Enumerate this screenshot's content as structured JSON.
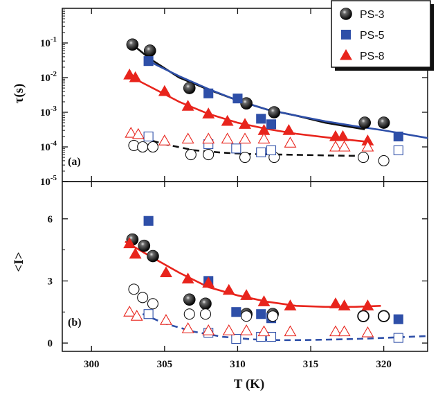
{
  "chart_data": [
    {
      "panel_label": "(a)",
      "type": "scatter",
      "ylabel": "τ(s)",
      "yscale": "log",
      "ylim": [
        1e-05,
        1
      ],
      "xlim": [
        298,
        323
      ],
      "yticks": [
        1e-05,
        0.0001,
        0.001,
        0.01,
        0.1
      ],
      "ytick_labels": [
        {
          "base": "10",
          "exp": "-5"
        },
        {
          "base": "10",
          "exp": "-4"
        },
        {
          "base": "10",
          "exp": "-3"
        },
        {
          "base": "10",
          "exp": "-2"
        },
        {
          "base": "10",
          "exp": "-1"
        }
      ],
      "series": [
        {
          "name": "PS-3",
          "marker": "sphere",
          "filled": true,
          "color": "#111111",
          "x": [
            302.8,
            304.0,
            306.7,
            310.6,
            312.5,
            318.7,
            320.0
          ],
          "y": [
            0.09,
            0.06,
            0.005,
            0.0018,
            0.001,
            0.0005,
            0.0005
          ]
        },
        {
          "name": "PS-5",
          "marker": "square",
          "filled": true,
          "color": "#2e4fa8",
          "x": [
            303.9,
            308.0,
            310.0,
            311.6,
            312.3,
            321.0
          ],
          "y": [
            0.03,
            0.0035,
            0.0025,
            0.00065,
            0.00045,
            0.0002
          ]
        },
        {
          "name": "PS-8",
          "marker": "triangle",
          "filled": true,
          "color": "#e8241c",
          "x": [
            302.6,
            303.0,
            305.0,
            306.6,
            308.0,
            309.3,
            310.5,
            311.8,
            313.5,
            316.7,
            317.2,
            318.9
          ],
          "y": [
            0.012,
            0.01,
            0.004,
            0.0015,
            0.0009,
            0.00055,
            0.00045,
            0.0003,
            0.0003,
            0.0002,
            0.0002,
            0.00015
          ]
        },
        {
          "name": "",
          "marker": "circle",
          "filled": false,
          "color": "#111111",
          "x": [
            302.9,
            303.5,
            304.2,
            306.8,
            308.0,
            310.5,
            312.5,
            318.6,
            320.0
          ],
          "y": [
            0.00011,
            0.0001,
            0.0001,
            6e-05,
            6e-05,
            5e-05,
            5e-05,
            5e-05,
            4e-05
          ]
        },
        {
          "name": "",
          "marker": "square",
          "filled": false,
          "color": "#2e4fa8",
          "x": [
            303.9,
            308.0,
            309.9,
            311.6,
            312.3,
            321.0
          ],
          "y": [
            0.0002,
            0.00012,
            9e-05,
            7e-05,
            8e-05,
            8e-05
          ]
        },
        {
          "name": "",
          "marker": "triangle",
          "filled": false,
          "color": "#e8241c",
          "x": [
            302.7,
            303.2,
            305.0,
            306.6,
            308.0,
            309.3,
            310.5,
            311.8,
            313.6,
            316.7,
            317.3,
            318.9
          ],
          "y": [
            0.00025,
            0.00023,
            0.00015,
            0.00017,
            0.00017,
            0.00017,
            0.00017,
            0.00017,
            0.00013,
            0.0001,
            0.0001,
            0.0001
          ]
        }
      ],
      "fits": [
        {
          "color": "#111111",
          "style": "solid",
          "x": [
            302.8,
            304,
            306,
            308,
            310,
            312,
            314,
            316,
            318.7
          ],
          "y": [
            0.09,
            0.035,
            0.01,
            0.0045,
            0.0022,
            0.0012,
            0.0008,
            0.0005,
            0.00032
          ]
        },
        {
          "color": "#2e4fa8",
          "style": "solid",
          "x": [
            303.9,
            306,
            308,
            310,
            312,
            314,
            316,
            318,
            320,
            323
          ],
          "y": [
            0.03,
            0.011,
            0.0047,
            0.0022,
            0.0012,
            0.0008,
            0.00055,
            0.0004,
            0.0003,
            0.00018
          ]
        },
        {
          "color": "#e8241c",
          "style": "solid",
          "x": [
            302.6,
            304,
            306,
            308,
            310,
            312,
            314,
            316,
            318.9
          ],
          "y": [
            0.011,
            0.0055,
            0.002,
            0.0009,
            0.0005,
            0.00033,
            0.00024,
            0.00019,
            0.00014
          ]
        },
        {
          "color": "#111111",
          "style": "dashed",
          "x": [
            303.5,
            305,
            307,
            309,
            311,
            313,
            315,
            317,
            318.6
          ],
          "y": [
            0.00018,
            0.00012,
            8e-05,
            6.8e-05,
            6.2e-05,
            6e-05,
            5.8e-05,
            5.6e-05,
            5.5e-05
          ]
        }
      ]
    },
    {
      "panel_label": "(b)",
      "type": "scatter",
      "ylabel": "<I>",
      "xlabel": "T (K)",
      "ylim": [
        -0.4,
        7.8
      ],
      "xlim": [
        298,
        323
      ],
      "yticks": [
        0,
        3,
        6
      ],
      "xticks": [
        300,
        305,
        310,
        315,
        320
      ],
      "series": [
        {
          "name": "PS-3",
          "marker": "sphere",
          "filled": true,
          "color": "#111111",
          "x": [
            302.8,
            303.6,
            304.2,
            306.7,
            307.8,
            310.6,
            312.4,
            318.6,
            320.0
          ],
          "y": [
            5.0,
            4.7,
            4.2,
            2.1,
            1.9,
            1.4,
            1.4,
            1.3,
            1.3
          ]
        },
        {
          "name": "PS-5",
          "marker": "square",
          "filled": true,
          "color": "#2e4fa8",
          "x": [
            303.9,
            308.0,
            309.9,
            311.6,
            312.3,
            321.0
          ],
          "y": [
            5.9,
            3.0,
            1.5,
            1.4,
            1.2,
            1.15
          ]
        },
        {
          "name": "PS-8",
          "marker": "triangle",
          "filled": true,
          "color": "#e8241c",
          "x": [
            302.6,
            303.0,
            305.1,
            306.6,
            308.0,
            309.4,
            310.6,
            311.8,
            313.6,
            316.7,
            317.3,
            318.9
          ],
          "y": [
            4.8,
            4.3,
            3.4,
            3.1,
            2.9,
            2.55,
            2.3,
            2.0,
            1.8,
            1.9,
            1.8,
            1.8
          ]
        },
        {
          "name": "",
          "marker": "circle",
          "filled": false,
          "color": "#111111",
          "x": [
            302.9,
            303.5,
            304.2,
            306.7,
            307.8,
            310.6,
            312.4,
            318.6,
            320.0
          ],
          "y": [
            2.6,
            2.2,
            1.9,
            1.4,
            1.4,
            1.3,
            1.3,
            1.3,
            1.3
          ]
        },
        {
          "name": "",
          "marker": "square",
          "filled": false,
          "color": "#2e4fa8",
          "x": [
            303.9,
            308.0,
            309.9,
            311.6,
            312.3,
            321.0
          ],
          "y": [
            1.4,
            0.5,
            0.2,
            0.3,
            0.3,
            0.25
          ]
        },
        {
          "name": "",
          "marker": "triangle",
          "filled": false,
          "color": "#e8241c",
          "x": [
            302.6,
            303.1,
            305.1,
            306.6,
            308.0,
            309.4,
            310.6,
            311.8,
            313.6,
            316.7,
            317.3,
            318.9
          ],
          "y": [
            1.5,
            1.3,
            1.1,
            0.7,
            0.6,
            0.6,
            0.6,
            0.55,
            0.55,
            0.55,
            0.55,
            0.5
          ]
        }
      ],
      "fits": [
        {
          "color": "#e8241c",
          "style": "solid",
          "x": [
            302.3,
            304,
            306,
            308,
            310,
            312,
            314,
            316,
            318,
            319.8
          ],
          "y": [
            4.9,
            4.2,
            3.4,
            2.7,
            2.3,
            2.0,
            1.8,
            1.75,
            1.75,
            1.8
          ]
        },
        {
          "color": "#2e4fa8",
          "style": "dashed",
          "x": [
            303.5,
            305,
            307,
            309,
            311,
            313,
            315,
            317,
            319,
            321,
            323
          ],
          "y": [
            1.4,
            0.95,
            0.55,
            0.3,
            0.18,
            0.14,
            0.15,
            0.18,
            0.22,
            0.28,
            0.34
          ]
        }
      ]
    }
  ],
  "legend": {
    "placement": "top-right",
    "entries": [
      {
        "label": "PS-3",
        "marker": "sphere",
        "color": "#111111"
      },
      {
        "label": "PS-5",
        "marker": "square",
        "color": "#2e4fa8"
      },
      {
        "label": "PS-8",
        "marker": "triangle",
        "color": "#e8241c"
      }
    ]
  }
}
